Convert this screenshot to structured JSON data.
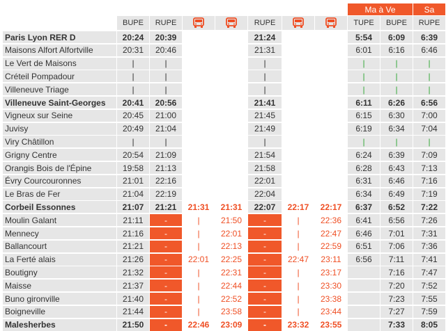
{
  "period_headers": [
    "Ma à Ve",
    "Sa"
  ],
  "column_headers": [
    {
      "type": "text",
      "label": "BUPE"
    },
    {
      "type": "text",
      "label": "RUPE"
    },
    {
      "type": "bus",
      "icon": "bus-icon"
    },
    {
      "type": "bus",
      "icon": "bus-icon"
    },
    {
      "type": "text",
      "label": "RUPE"
    },
    {
      "type": "bus",
      "icon": "bus-icon"
    },
    {
      "type": "bus",
      "icon": "bus-icon"
    },
    {
      "type": "text",
      "label": "TUPE"
    },
    {
      "type": "text",
      "label": "BUPE"
    },
    {
      "type": "text",
      "label": "RUPE"
    }
  ],
  "rows": [
    {
      "station": "Paris Lyon RER D",
      "bold": true,
      "times": [
        "20:24",
        "20:39",
        "",
        "",
        "21:24",
        "",
        "",
        "5:54",
        "6:09",
        "6:39"
      ]
    },
    {
      "station": "Maisons Alfort Alfortville",
      "bold": false,
      "times": [
        "20:31",
        "20:46",
        "",
        "",
        "21:31",
        "",
        "",
        "6:01",
        "6:16",
        "6:46"
      ]
    },
    {
      "station": "Le Vert de Maisons",
      "bold": false,
      "times": [
        "|",
        "|",
        "",
        "",
        "|",
        "",
        "",
        "|",
        "|",
        "|"
      ]
    },
    {
      "station": "Créteil Pompadour",
      "bold": false,
      "times": [
        "|",
        "|",
        "",
        "",
        "|",
        "",
        "",
        "|",
        "|",
        "|"
      ]
    },
    {
      "station": "Villeneuve Triage",
      "bold": false,
      "times": [
        "|",
        "|",
        "",
        "",
        "|",
        "",
        "",
        "|",
        "|",
        "|"
      ]
    },
    {
      "station": "Villeneuve Saint-Georges",
      "bold": true,
      "times": [
        "20:41",
        "20:56",
        "",
        "",
        "21:41",
        "",
        "",
        "6:11",
        "6:26",
        "6:56"
      ]
    },
    {
      "station": "Vigneux sur Seine",
      "bold": false,
      "times": [
        "20:45",
        "21:00",
        "",
        "",
        "21:45",
        "",
        "",
        "6:15",
        "6:30",
        "7:00"
      ]
    },
    {
      "station": "Juvisy",
      "bold": false,
      "times": [
        "20:49",
        "21:04",
        "",
        "",
        "21:49",
        "",
        "",
        "6:19",
        "6:34",
        "7:04"
      ]
    },
    {
      "station": "Viry Châtillon",
      "bold": false,
      "times": [
        "|",
        "|",
        "",
        "",
        "|",
        "",
        "",
        "|",
        "|",
        "|"
      ]
    },
    {
      "station": "Grigny Centre",
      "bold": false,
      "times": [
        "20:54",
        "21:09",
        "",
        "",
        "21:54",
        "",
        "",
        "6:24",
        "6:39",
        "7:09"
      ]
    },
    {
      "station": "Orangis Bois de l'Épine",
      "bold": false,
      "times": [
        "19:58",
        "21:13",
        "",
        "",
        "21:58",
        "",
        "",
        "6:28",
        "6:43",
        "7:13"
      ]
    },
    {
      "station": "Évry Courcouronnes",
      "bold": false,
      "times": [
        "21:01",
        "22:16",
        "",
        "",
        "22:01",
        "",
        "",
        "6:31",
        "6:46",
        "7:16"
      ]
    },
    {
      "station": "Le Bras de Fer",
      "bold": false,
      "times": [
        "21:04",
        "22:19",
        "",
        "",
        "22:04",
        "",
        "",
        "6:34",
        "6:49",
        "7:19"
      ]
    },
    {
      "station": "Corbeil Essonnes",
      "bold": true,
      "times": [
        "21:07",
        "21:21",
        "21:31",
        "21:31",
        "22:07",
        "22:17",
        "22:17",
        "6:37",
        "6:52",
        "7:22"
      ]
    },
    {
      "station": "Moulin Galant",
      "bold": false,
      "times": [
        "21:11",
        "-",
        "|",
        "21:50",
        "-",
        "|",
        "22:36",
        "6:41",
        "6:56",
        "7:26"
      ]
    },
    {
      "station": "Mennecy",
      "bold": false,
      "times": [
        "21:16",
        "-",
        "|",
        "22:01",
        "-",
        "|",
        "22:47",
        "6:46",
        "7:01",
        "7:31"
      ]
    },
    {
      "station": "Ballancourt",
      "bold": false,
      "times": [
        "21:21",
        "-",
        "|",
        "22:13",
        "-",
        "|",
        "22:59",
        "6:51",
        "7:06",
        "7:36"
      ]
    },
    {
      "station": "La Ferté alais",
      "bold": false,
      "times": [
        "21:26",
        "-",
        "22:01",
        "22:25",
        "-",
        "22:47",
        "23:11",
        "6:56",
        "7:11",
        "7:41"
      ]
    },
    {
      "station": "Boutigny",
      "bold": false,
      "times": [
        "21:32",
        "-",
        "|",
        "22:31",
        "-",
        "|",
        "23:17",
        "",
        "7:16",
        "7:47"
      ]
    },
    {
      "station": "Maisse",
      "bold": false,
      "times": [
        "21:37",
        "-",
        "|",
        "22:44",
        "-",
        "|",
        "23:30",
        "",
        "7:20",
        "7:52"
      ]
    },
    {
      "station": "Buno gironville",
      "bold": false,
      "times": [
        "21:40",
        "-",
        "|",
        "22:52",
        "-",
        "|",
        "23:38",
        "",
        "7:23",
        "7:55"
      ]
    },
    {
      "station": "Boigneville",
      "bold": false,
      "times": [
        "21:44",
        "-",
        "|",
        "23:58",
        "-",
        "|",
        "23:44",
        "",
        "7:27",
        "7:59"
      ]
    },
    {
      "station": "Malesherbes",
      "bold": true,
      "times": [
        "21:50",
        "-",
        "22:46",
        "23:09",
        "-",
        "23:32",
        "23:55",
        "",
        "7:33",
        "8:05"
      ]
    }
  ],
  "colors": {
    "accent": "#f0582a",
    "green": "#35a83a",
    "grey": "#e6e6e6"
  }
}
